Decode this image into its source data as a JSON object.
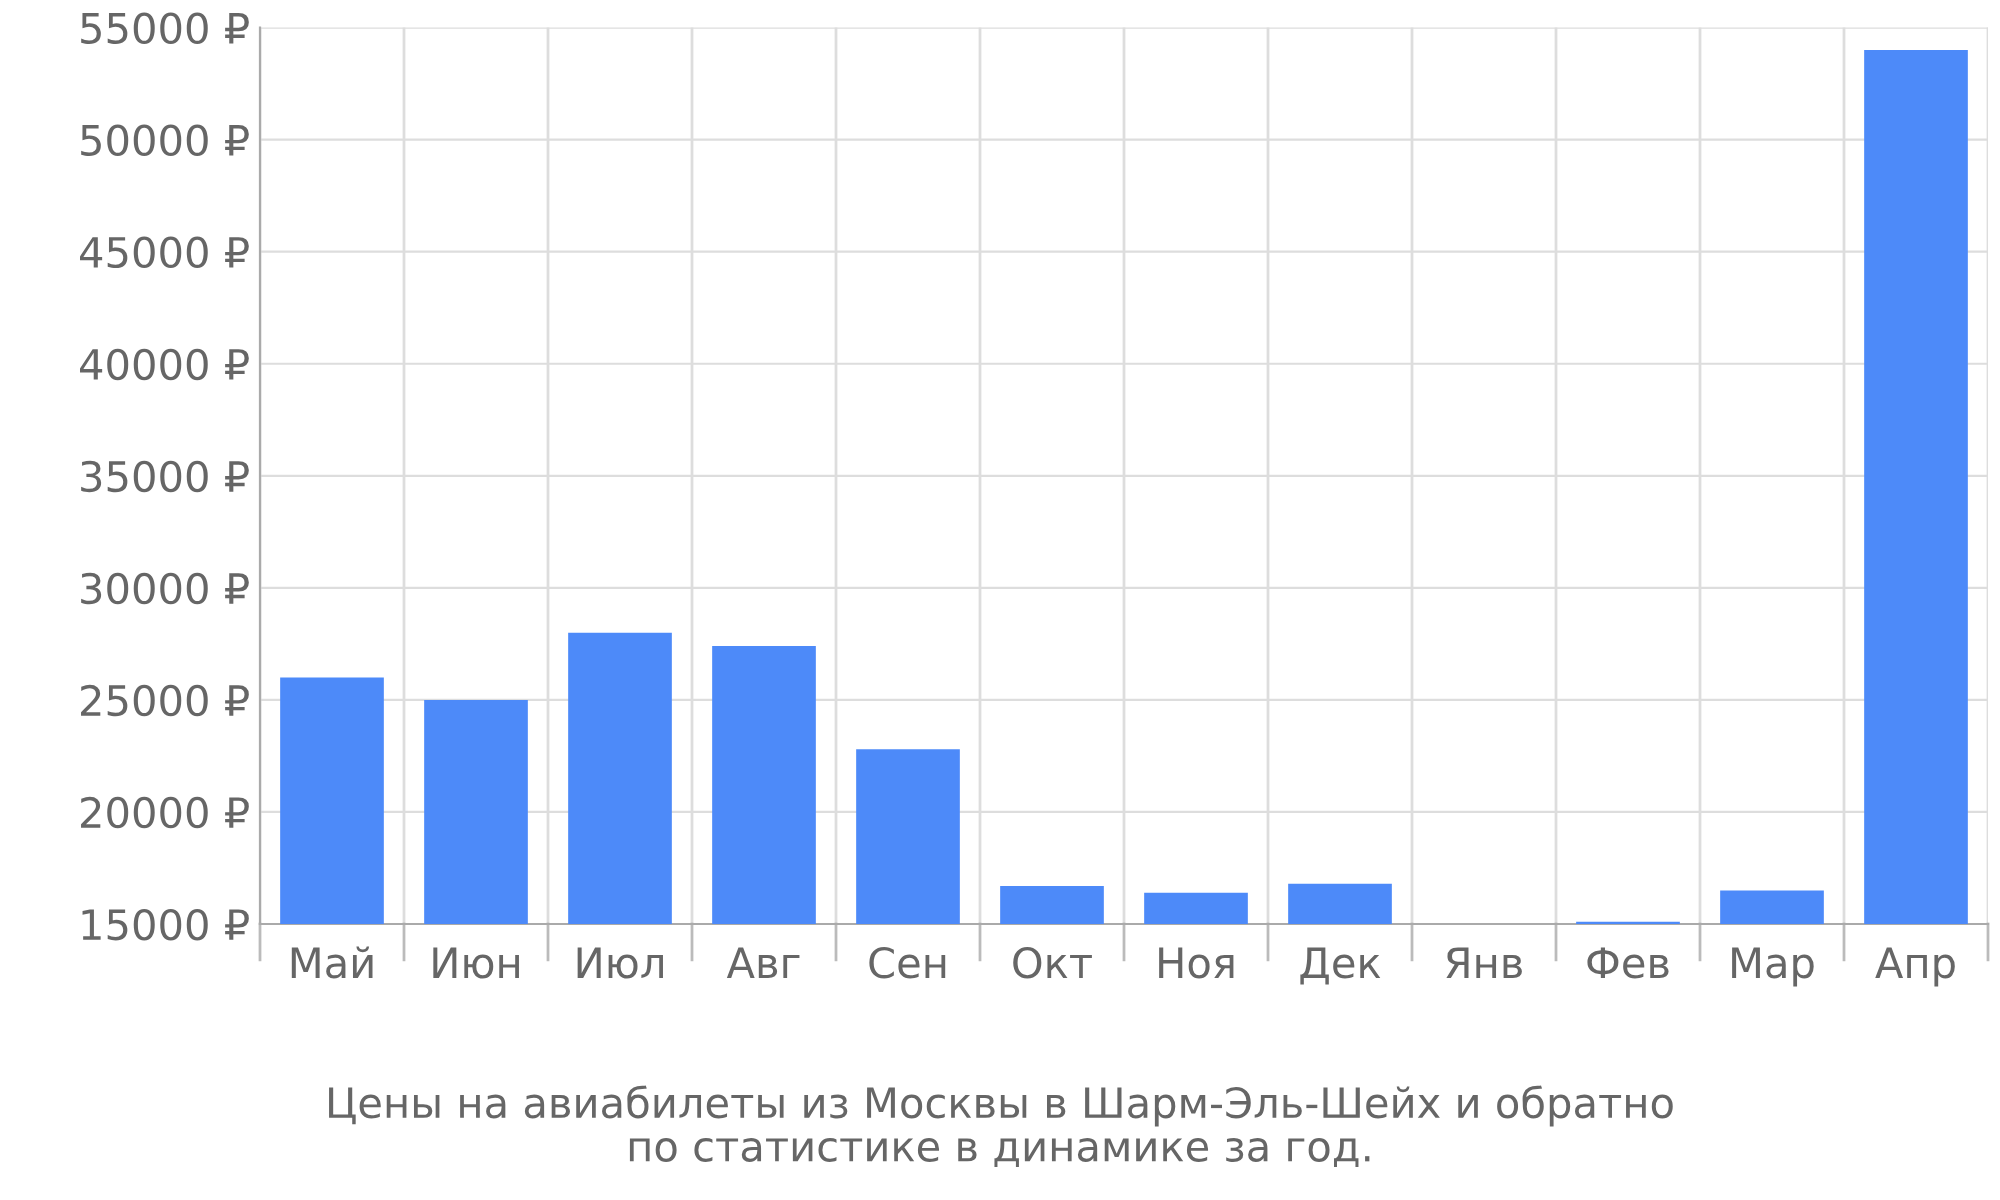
{
  "chart_data": {
    "type": "bar",
    "categories": [
      "Май",
      "Июн",
      "Июл",
      "Авг",
      "Сен",
      "Окт",
      "Ноя",
      "Дек",
      "Янв",
      "Фев",
      "Мар",
      "Апр"
    ],
    "values": [
      26000,
      25000,
      28000,
      27400,
      22800,
      16700,
      16400,
      16800,
      null,
      15100,
      16500,
      54000
    ],
    "color": "#4d8af9",
    "ylim": [
      15000,
      55000
    ],
    "yticks": [
      {
        "value": 15000,
        "label": "15000 ₽"
      },
      {
        "value": 20000,
        "label": "20000 ₽"
      },
      {
        "value": 25000,
        "label": "25000 ₽"
      },
      {
        "value": 30000,
        "label": "30000 ₽"
      },
      {
        "value": 35000,
        "label": "35000 ₽"
      },
      {
        "value": 40000,
        "label": "40000 ₽"
      },
      {
        "value": 45000,
        "label": "45000 ₽"
      },
      {
        "value": 50000,
        "label": "50000 ₽"
      },
      {
        "value": 55000,
        "label": "55000 ₽"
      }
    ],
    "grid": true,
    "annotations": [
      "Цены на авиабилеты из Москвы в Шарм-Эль-Шейх и обратно\nпо статистике в динамике за год."
    ]
  }
}
